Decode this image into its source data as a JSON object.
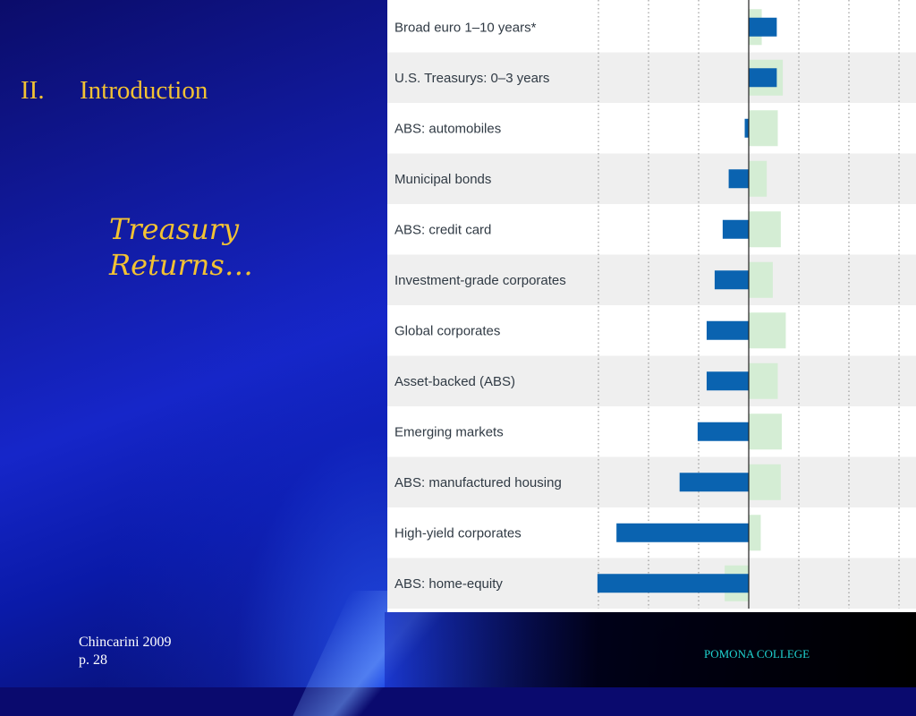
{
  "slide": {
    "section_number": "II.",
    "section_title": "Introduction",
    "subtitle_line1": "Treasury",
    "subtitle_line2": "Returns…",
    "footer_author": "Chincarini 2009",
    "footer_page": "p. 28",
    "footer_org": "POMONA COLLEGE"
  },
  "colors": {
    "primary_bar": "#0a63b0",
    "secondary_bar": "#d4edd4",
    "row_stripe": "#efefef",
    "title_gold": "#f2c233",
    "footer_teal": "#1fd3d0"
  },
  "chart_data": {
    "type": "bar",
    "orientation": "horizontal",
    "grid": "vertical-dotted",
    "categories": [
      "Broad euro 1–10 years*",
      "U.S. Treasurys: 0–3 years",
      "ABS: automobiles",
      "Municipal bonds",
      "ABS: credit card",
      "Investment-grade corporates",
      "Global corporates",
      "Asset-backed (ABS)",
      "Emerging markets",
      "ABS: manufactured housing",
      "High-yield corporates",
      "ABS: home-equity"
    ],
    "series": [
      {
        "values": [
          2.8,
          2.8,
          -0.4,
          -2.0,
          -2.6,
          -3.4,
          -4.2,
          -4.2,
          -5.1,
          -6.9,
          -13.2,
          -15.1
        ]
      },
      {
        "values": [
          1.3,
          3.4,
          2.9,
          1.8,
          3.2,
          2.4,
          3.7,
          2.9,
          3.3,
          3.2,
          1.2,
          -2.4
        ]
      }
    ],
    "xlim": [
      -15.3,
      15.3
    ]
  }
}
